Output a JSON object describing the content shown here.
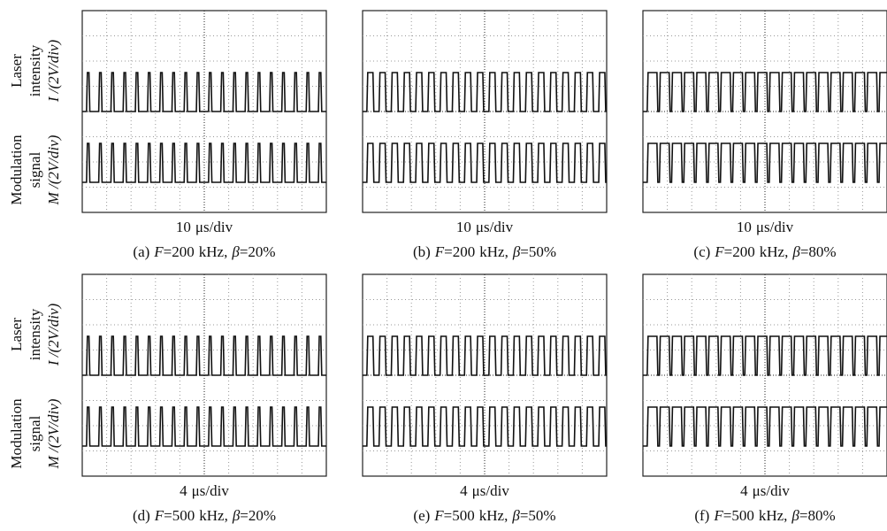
{
  "equals_sign": "=",
  "comma": ",",
  "y_labels": {
    "top": [
      "Laser",
      "intensity",
      "I /(2V/div)"
    ],
    "bottom": [
      "Modulation",
      "signal",
      "M /(2V/div)"
    ]
  },
  "panels": [
    {
      "label": "(a)",
      "time_div": 10,
      "time_unit": "μs/div",
      "freq_symbol": "F",
      "freq": 200,
      "freq_unit": "kHz",
      "duty_symbol": "β",
      "duty": 20,
      "duty_unit": "%"
    },
    {
      "label": "(b)",
      "time_div": 10,
      "time_unit": "μs/div",
      "freq_symbol": "F",
      "freq": 200,
      "freq_unit": "kHz",
      "duty_symbol": "β",
      "duty": 50,
      "duty_unit": "%"
    },
    {
      "label": "(c)",
      "time_div": 10,
      "time_unit": "μs/div",
      "freq_symbol": "F",
      "freq": 200,
      "freq_unit": "kHz",
      "duty_symbol": "β",
      "duty": 80,
      "duty_unit": "%"
    },
    {
      "label": "(d)",
      "time_div": 4,
      "time_unit": "μs/div",
      "freq_symbol": "F",
      "freq": 500,
      "freq_unit": "kHz",
      "duty_symbol": "β",
      "duty": 20,
      "duty_unit": "%"
    },
    {
      "label": "(e)",
      "time_div": 4,
      "time_unit": "μs/div",
      "freq_symbol": "F",
      "freq": 500,
      "freq_unit": "kHz",
      "duty_symbol": "β",
      "duty": 50,
      "duty_unit": "%"
    },
    {
      "label": "(f)",
      "time_div": 4,
      "time_unit": "μs/div",
      "freq_symbol": "F",
      "freq": 500,
      "freq_unit": "kHz",
      "duty_symbol": "β",
      "duty": 80,
      "duty_unit": "%"
    }
  ]
}
